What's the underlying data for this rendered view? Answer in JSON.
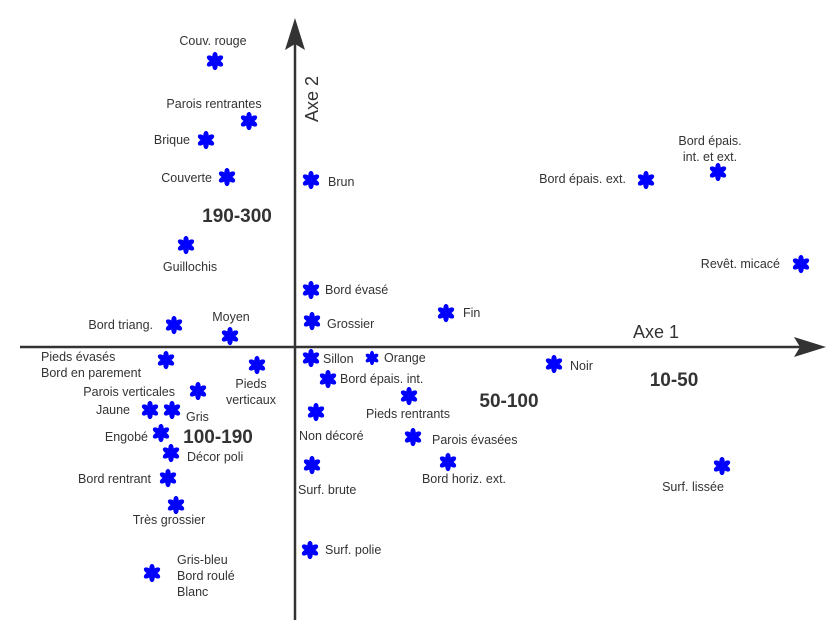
{
  "chart_data": {
    "type": "scatter",
    "xlabel": "Axe 1",
    "ylabel": "Axe 2",
    "grid": false,
    "marker": "asterisk",
    "marker_color": "#0000ff",
    "axis_color": "#333333",
    "points": [
      {
        "labels": [
          "Couv. rouge"
        ],
        "x": -0.8,
        "y": 2.86
      },
      {
        "labels": [
          "Parois rentrantes"
        ],
        "x": -0.46,
        "y": 2.26
      },
      {
        "labels": [
          "Brique"
        ],
        "x": -0.89,
        "y": 2.07
      },
      {
        "labels": [
          "Couverte"
        ],
        "x": -0.68,
        "y": 1.7
      },
      {
        "labels": [
          "Guillochis"
        ],
        "x": -1.09,
        "y": 1.02
      },
      {
        "labels": [
          "Bord triang."
        ],
        "x": -1.21,
        "y": 0.22
      },
      {
        "labels": [
          "Moyen"
        ],
        "x": -0.65,
        "y": 0.11
      },
      {
        "labels": [
          "Pieds évasés",
          "Bord en parement"
        ],
        "x": -1.29,
        "y": -0.13
      },
      {
        "labels": [
          "Pieds",
          "verticaux"
        ],
        "x": -0.38,
        "y": -0.18
      },
      {
        "labels": [
          "Parois verticales"
        ],
        "x": -0.97,
        "y": -0.44
      },
      {
        "labels": [
          "Jaune"
        ],
        "x": -1.45,
        "y": -0.63
      },
      {
        "labels": [
          "Gris"
        ],
        "x": -1.23,
        "y": -0.63
      },
      {
        "labels": [
          "Engobé"
        ],
        "x": -1.34,
        "y": -0.86
      },
      {
        "labels": [
          "Décor poli"
        ],
        "x": -1.24,
        "y": -1.06
      },
      {
        "labels": [
          "Bord rentrant"
        ],
        "x": -1.27,
        "y": -1.31
      },
      {
        "labels": [
          "Très grossier"
        ],
        "x": -1.19,
        "y": -1.58
      },
      {
        "labels": [
          "Gris-bleu",
          "Bord roulé",
          "Blanc"
        ],
        "x": -1.43,
        "y": -2.26
      },
      {
        "labels": [
          "Brun"
        ],
        "x": 0.16,
        "y": 1.67
      },
      {
        "labels": [
          "Bord évasé"
        ],
        "x": 0.16,
        "y": 0.57
      },
      {
        "labels": [
          "Grossier"
        ],
        "x": 0.17,
        "y": 0.26
      },
      {
        "labels": [
          "Fin"
        ],
        "x": 1.51,
        "y": 0.34
      },
      {
        "labels": [
          "Sillon"
        ],
        "x": 0.16,
        "y": -0.11
      },
      {
        "labels": [
          "Orange"
        ],
        "x": 0.77,
        "y": -0.11
      },
      {
        "labels": [
          "Bord épais. int."
        ],
        "x": 0.33,
        "y": -0.32
      },
      {
        "labels": [
          "Pieds rentrants"
        ],
        "x": 1.14,
        "y": -0.49
      },
      {
        "labels": [
          "Non décoré"
        ],
        "x": 0.21,
        "y": -0.65
      },
      {
        "labels": [
          "Parois évasées"
        ],
        "x": 1.18,
        "y": -0.9
      },
      {
        "labels": [
          "Bord horiz. ext."
        ],
        "x": 1.53,
        "y": -1.15
      },
      {
        "labels": [
          "Surf. brute"
        ],
        "x": 0.17,
        "y": -1.18
      },
      {
        "labels": [
          "Surf. polie"
        ],
        "x": 0.15,
        "y": -2.03
      },
      {
        "labels": [
          "Noir"
        ],
        "x": 2.59,
        "y": -0.17
      },
      {
        "labels": [
          "Surf. lissée"
        ],
        "x": 4.27,
        "y": -1.19
      },
      {
        "labels": [
          "Bord épais. ext."
        ],
        "x": 3.51,
        "y": 1.67
      },
      {
        "labels": [
          "Bord épais.",
          "int. et ext."
        ],
        "x": 4.23,
        "y": 1.75
      },
      {
        "labels": [
          "Revêt. micacé"
        ],
        "x": 5.06,
        "y": 0.83
      }
    ],
    "annotations": [
      {
        "text": "190-300",
        "x": -0.58,
        "y": 1.32
      },
      {
        "text": "100-190",
        "x": -0.77,
        "y": -0.89
      },
      {
        "text": "50-100",
        "x": 2.14,
        "y": -0.53
      },
      {
        "text": "10-50",
        "x": 3.79,
        "y": -0.32
      }
    ]
  }
}
